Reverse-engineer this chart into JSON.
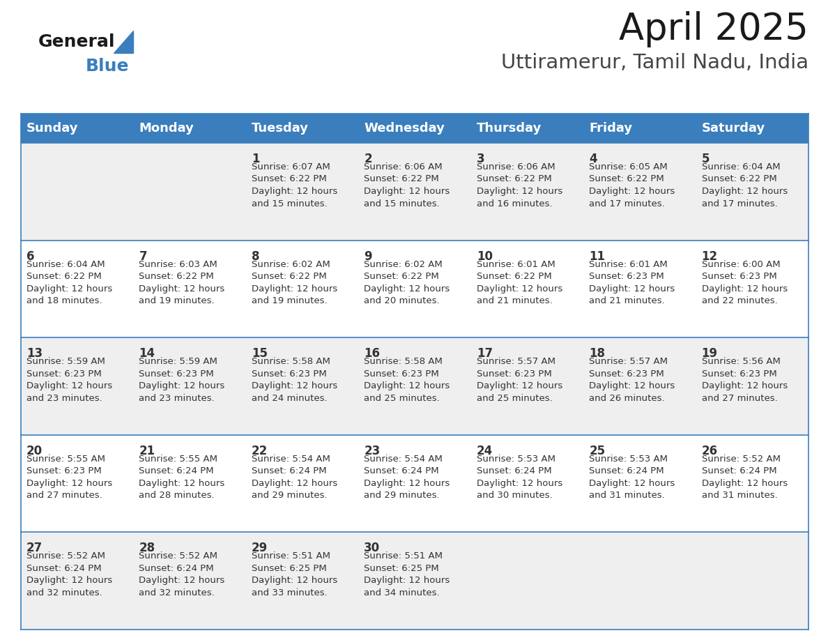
{
  "title": "April 2025",
  "subtitle": "Uttiramerur, Tamil Nadu, India",
  "header_color": "#3A7EBD",
  "header_text_color": "#FFFFFF",
  "days_of_week": [
    "Sunday",
    "Monday",
    "Tuesday",
    "Wednesday",
    "Thursday",
    "Friday",
    "Saturday"
  ],
  "background_color": "#FFFFFF",
  "cell_bg_even": "#EFEFEF",
  "cell_bg_odd": "#FFFFFF",
  "border_color": "#3A7EBD",
  "text_color": "#333333",
  "title_fontsize": 38,
  "subtitle_fontsize": 21,
  "day_name_fontsize": 13,
  "date_fontsize": 12,
  "info_fontsize": 9.5,
  "logo_general_fontsize": 18,
  "logo_blue_fontsize": 18,
  "calendar_data": [
    [
      {
        "day": null,
        "info": ""
      },
      {
        "day": null,
        "info": ""
      },
      {
        "day": 1,
        "info": "Sunrise: 6:07 AM\nSunset: 6:22 PM\nDaylight: 12 hours\nand 15 minutes."
      },
      {
        "day": 2,
        "info": "Sunrise: 6:06 AM\nSunset: 6:22 PM\nDaylight: 12 hours\nand 15 minutes."
      },
      {
        "day": 3,
        "info": "Sunrise: 6:06 AM\nSunset: 6:22 PM\nDaylight: 12 hours\nand 16 minutes."
      },
      {
        "day": 4,
        "info": "Sunrise: 6:05 AM\nSunset: 6:22 PM\nDaylight: 12 hours\nand 17 minutes."
      },
      {
        "day": 5,
        "info": "Sunrise: 6:04 AM\nSunset: 6:22 PM\nDaylight: 12 hours\nand 17 minutes."
      }
    ],
    [
      {
        "day": 6,
        "info": "Sunrise: 6:04 AM\nSunset: 6:22 PM\nDaylight: 12 hours\nand 18 minutes."
      },
      {
        "day": 7,
        "info": "Sunrise: 6:03 AM\nSunset: 6:22 PM\nDaylight: 12 hours\nand 19 minutes."
      },
      {
        "day": 8,
        "info": "Sunrise: 6:02 AM\nSunset: 6:22 PM\nDaylight: 12 hours\nand 19 minutes."
      },
      {
        "day": 9,
        "info": "Sunrise: 6:02 AM\nSunset: 6:22 PM\nDaylight: 12 hours\nand 20 minutes."
      },
      {
        "day": 10,
        "info": "Sunrise: 6:01 AM\nSunset: 6:22 PM\nDaylight: 12 hours\nand 21 minutes."
      },
      {
        "day": 11,
        "info": "Sunrise: 6:01 AM\nSunset: 6:23 PM\nDaylight: 12 hours\nand 21 minutes."
      },
      {
        "day": 12,
        "info": "Sunrise: 6:00 AM\nSunset: 6:23 PM\nDaylight: 12 hours\nand 22 minutes."
      }
    ],
    [
      {
        "day": 13,
        "info": "Sunrise: 5:59 AM\nSunset: 6:23 PM\nDaylight: 12 hours\nand 23 minutes."
      },
      {
        "day": 14,
        "info": "Sunrise: 5:59 AM\nSunset: 6:23 PM\nDaylight: 12 hours\nand 23 minutes."
      },
      {
        "day": 15,
        "info": "Sunrise: 5:58 AM\nSunset: 6:23 PM\nDaylight: 12 hours\nand 24 minutes."
      },
      {
        "day": 16,
        "info": "Sunrise: 5:58 AM\nSunset: 6:23 PM\nDaylight: 12 hours\nand 25 minutes."
      },
      {
        "day": 17,
        "info": "Sunrise: 5:57 AM\nSunset: 6:23 PM\nDaylight: 12 hours\nand 25 minutes."
      },
      {
        "day": 18,
        "info": "Sunrise: 5:57 AM\nSunset: 6:23 PM\nDaylight: 12 hours\nand 26 minutes."
      },
      {
        "day": 19,
        "info": "Sunrise: 5:56 AM\nSunset: 6:23 PM\nDaylight: 12 hours\nand 27 minutes."
      }
    ],
    [
      {
        "day": 20,
        "info": "Sunrise: 5:55 AM\nSunset: 6:23 PM\nDaylight: 12 hours\nand 27 minutes."
      },
      {
        "day": 21,
        "info": "Sunrise: 5:55 AM\nSunset: 6:24 PM\nDaylight: 12 hours\nand 28 minutes."
      },
      {
        "day": 22,
        "info": "Sunrise: 5:54 AM\nSunset: 6:24 PM\nDaylight: 12 hours\nand 29 minutes."
      },
      {
        "day": 23,
        "info": "Sunrise: 5:54 AM\nSunset: 6:24 PM\nDaylight: 12 hours\nand 29 minutes."
      },
      {
        "day": 24,
        "info": "Sunrise: 5:53 AM\nSunset: 6:24 PM\nDaylight: 12 hours\nand 30 minutes."
      },
      {
        "day": 25,
        "info": "Sunrise: 5:53 AM\nSunset: 6:24 PM\nDaylight: 12 hours\nand 31 minutes."
      },
      {
        "day": 26,
        "info": "Sunrise: 5:52 AM\nSunset: 6:24 PM\nDaylight: 12 hours\nand 31 minutes."
      }
    ],
    [
      {
        "day": 27,
        "info": "Sunrise: 5:52 AM\nSunset: 6:24 PM\nDaylight: 12 hours\nand 32 minutes."
      },
      {
        "day": 28,
        "info": "Sunrise: 5:52 AM\nSunset: 6:24 PM\nDaylight: 12 hours\nand 32 minutes."
      },
      {
        "day": 29,
        "info": "Sunrise: 5:51 AM\nSunset: 6:25 PM\nDaylight: 12 hours\nand 33 minutes."
      },
      {
        "day": 30,
        "info": "Sunrise: 5:51 AM\nSunset: 6:25 PM\nDaylight: 12 hours\nand 34 minutes."
      },
      {
        "day": null,
        "info": ""
      },
      {
        "day": null,
        "info": ""
      },
      {
        "day": null,
        "info": ""
      }
    ]
  ]
}
